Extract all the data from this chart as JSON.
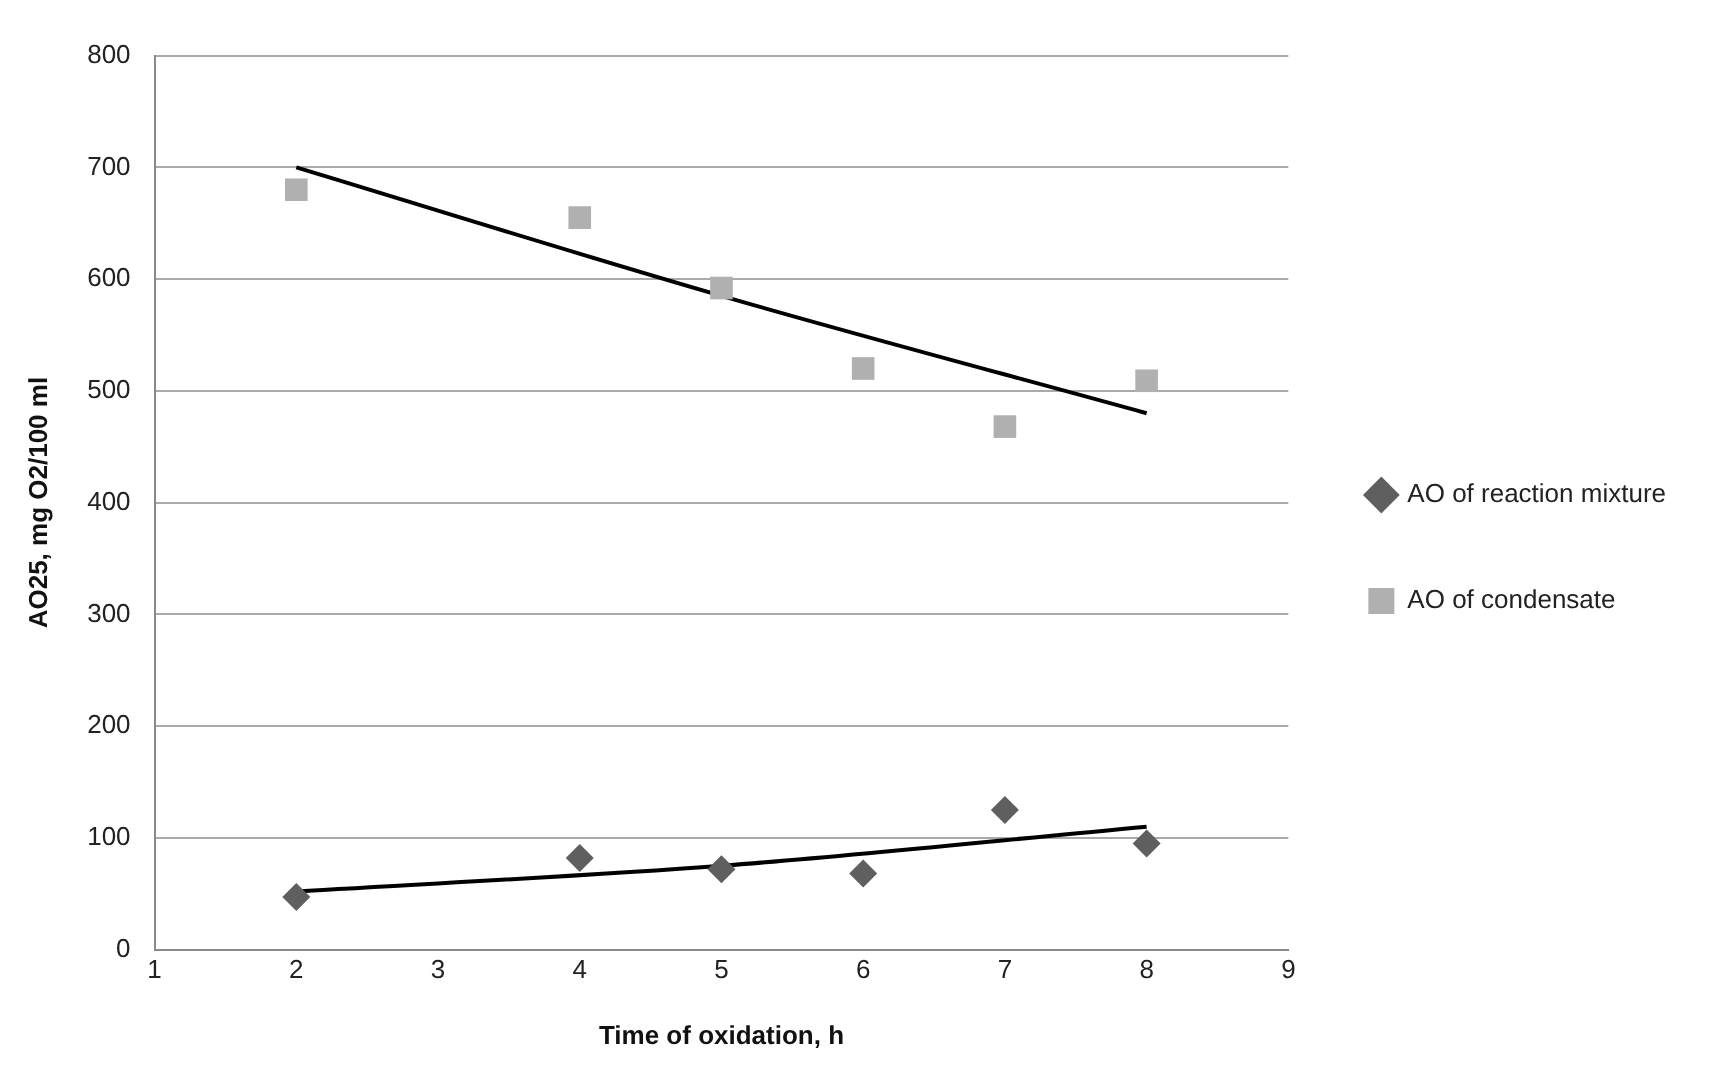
{
  "chart_data": {
    "type": "scatter",
    "xlabel": "Time of oxidation, h",
    "ylabel": "AO25, mg O2/100 ml",
    "xlim": [
      1,
      9
    ],
    "xticks": [
      1,
      2,
      3,
      4,
      5,
      6,
      7,
      8,
      9
    ],
    "ylim": [
      0,
      800
    ],
    "yticks": [
      0,
      100,
      200,
      300,
      400,
      500,
      600,
      700,
      800
    ],
    "grid": "y",
    "legend": "right",
    "series": [
      {
        "name": "AO of reaction mixture",
        "color": "#5f5f5f",
        "marker": "diamond",
        "x": [
          2,
          4,
          5,
          6,
          7,
          8
        ],
        "values": [
          47,
          82,
          72,
          68,
          125,
          95
        ]
      },
      {
        "name": "AO of condensate",
        "color": "#b0b0b0",
        "marker": "square",
        "x": [
          2,
          4,
          5,
          6,
          7,
          8
        ],
        "values": [
          680,
          655,
          592,
          520,
          468,
          509
        ]
      },
      {
        "type": "line",
        "color": "#000000",
        "marker": "none",
        "x": [
          2,
          5,
          8
        ],
        "values": [
          700,
          585,
          480
        ]
      },
      {
        "type": "line",
        "color": "#000000",
        "marker": "none",
        "x": [
          2,
          5,
          8
        ],
        "values": [
          52,
          75,
          110
        ]
      }
    ]
  }
}
